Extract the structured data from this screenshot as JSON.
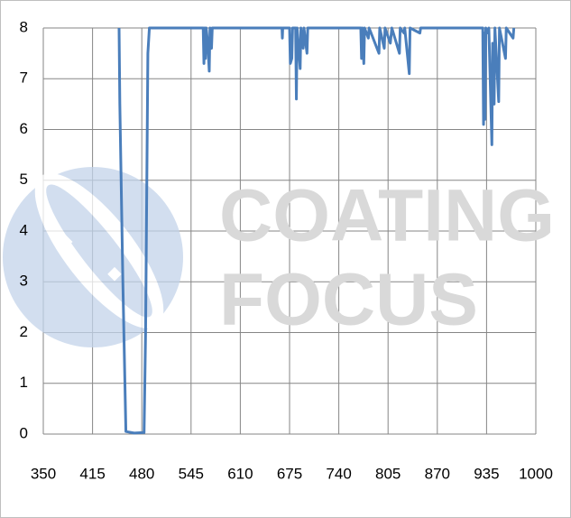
{
  "chart_data": {
    "type": "line",
    "watermark": [
      "COATING",
      "FOCUS"
    ],
    "xlim": [
      350,
      1000
    ],
    "xticks": [
      350,
      415,
      480,
      545,
      610,
      675,
      740,
      805,
      870,
      935,
      1000
    ],
    "ylim": [
      0,
      8
    ],
    "yticks": [
      0,
      1,
      2,
      3,
      4,
      5,
      6,
      7,
      8
    ],
    "grid": true,
    "series": [
      {
        "color": "#4a7ebb",
        "x": [
          450,
          451,
          455,
          459,
          470,
          483,
          485,
          488,
          490,
          561,
          562,
          563,
          564,
          565,
          567,
          569,
          570,
          572,
          573,
          665,
          665.5,
          666,
          675,
          676,
          678,
          679,
          683,
          684,
          685,
          689,
          690,
          693,
          694,
          698,
          699,
          769,
          770,
          771,
          773,
          774,
          779,
          780,
          793,
          794,
          800,
          801,
          808,
          810,
          820,
          821,
          826,
          827,
          833,
          834,
          847,
          848,
          930,
          931,
          932,
          933,
          934,
          937,
          938,
          942,
          943,
          944,
          945,
          946,
          951,
          952,
          960,
          961,
          970,
          971
        ],
        "values": [
          8,
          6.5,
          3,
          0.05,
          0.02,
          0.03,
          2,
          7.5,
          8,
          8,
          7.3,
          8,
          7.4,
          8,
          7.7,
          7.15,
          8,
          7.6,
          8,
          8,
          7.8,
          8,
          8,
          7.3,
          7.4,
          8,
          8,
          6.6,
          8,
          7.2,
          8,
          7.6,
          8,
          7.5,
          8,
          8,
          7.4,
          8,
          7.3,
          8,
          7.8,
          8,
          7.5,
          8,
          7.6,
          8,
          7.7,
          8,
          7.5,
          8,
          7.9,
          8,
          7.1,
          8,
          7.9,
          8,
          8,
          6.1,
          7.9,
          6.2,
          8,
          7.9,
          8,
          5.7,
          7.7,
          7.6,
          6.5,
          8,
          6.55,
          8,
          7.4,
          8,
          7.8,
          8
        ]
      }
    ]
  }
}
